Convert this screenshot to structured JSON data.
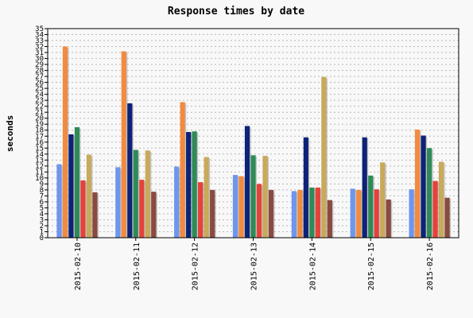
{
  "chart_data": {
    "type": "bar",
    "title": "Response times by date",
    "xlabel": "",
    "ylabel": "seconds",
    "ylim": [
      0,
      35
    ],
    "ytick_step": 1,
    "grid": true,
    "categories": [
      "2015-02-10",
      "2015-02-11",
      "2015-02-12",
      "2015-02-13",
      "2015-02-14",
      "2015-02-15",
      "2015-02-16"
    ],
    "series": [
      {
        "color": "#6f96ee",
        "values": [
          12.3,
          11.8,
          11.9,
          10.5,
          7.8,
          8.2,
          8.1
        ]
      },
      {
        "color": "#f28b3f",
        "values": [
          32.0,
          31.2,
          22.7,
          10.3,
          8.0,
          8.0,
          18.1
        ]
      },
      {
        "color": "#0d2377",
        "values": [
          17.3,
          22.5,
          17.7,
          18.7,
          16.8,
          16.8,
          17.1
        ]
      },
      {
        "color": "#2e8b57",
        "values": [
          18.5,
          14.7,
          17.8,
          13.8,
          8.4,
          10.4,
          15.0
        ]
      },
      {
        "color": "#e5423b",
        "values": [
          9.6,
          9.7,
          9.3,
          9.0,
          8.4,
          8.1,
          9.5
        ]
      },
      {
        "color": "#c9a95a",
        "values": [
          13.9,
          14.6,
          13.5,
          13.7,
          26.9,
          12.6,
          12.7
        ]
      },
      {
        "color": "#8b4a3f",
        "values": [
          7.6,
          7.7,
          8.0,
          8.0,
          6.3,
          6.4,
          6.7
        ]
      }
    ]
  }
}
